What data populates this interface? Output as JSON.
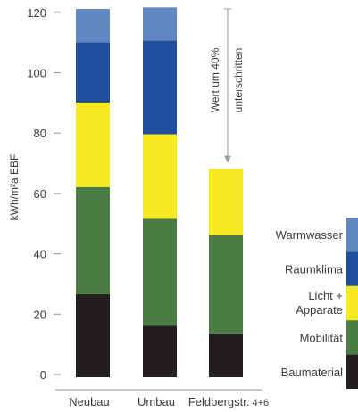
{
  "chart_data": {
    "type": "bar",
    "stacked": true,
    "ylabel": "kWh/m²a EBF",
    "ylim": [
      0,
      120
    ],
    "yticks": [
      0,
      20,
      40,
      60,
      80,
      100,
      120
    ],
    "categories": [
      "Neubau",
      "Umbau",
      "Feldbergstr."
    ],
    "category_suffixes": [
      "",
      "",
      "4+6"
    ],
    "series": [
      {
        "name": "Baumaterial",
        "color": "#231f20",
        "values": [
          27.5,
          17.0,
          14.5
        ]
      },
      {
        "name": "Mobilität",
        "color": "#4a7c46",
        "values": [
          35.5,
          35.5,
          32.5
        ]
      },
      {
        "name": "Licht +",
        "name_line2": "Apparate",
        "color": "#f5ea22",
        "values": [
          28.0,
          28.0,
          22.0
        ]
      },
      {
        "name": "Raumklima",
        "color": "#1d4f9c",
        "values": [
          20.0,
          31.0,
          0
        ]
      },
      {
        "name": "Warmwasser",
        "color": "#6288c4",
        "values": [
          11.0,
          11.0,
          0
        ]
      }
    ],
    "annotation": {
      "line1": "Wert um 40%",
      "line2": "unterschritten",
      "arrow_from": 122,
      "arrow_to": 71,
      "bar_index": 2
    },
    "legend_position": "right",
    "grid": false
  }
}
